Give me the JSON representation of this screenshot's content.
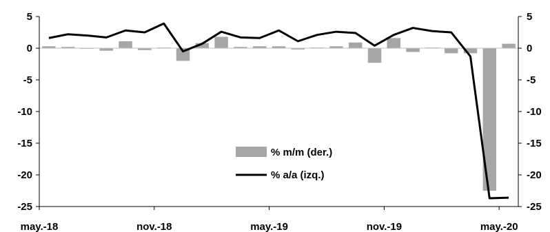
{
  "chart_data": {
    "type": "bar+line",
    "title": "",
    "xlabel": "",
    "ylabel": "",
    "dual_axis": true,
    "x_labels_shown": [
      "may.-18",
      "nov.-18",
      "may.-19",
      "nov.-19",
      "may.-20"
    ],
    "x": [
      "may.-18",
      "jun.-18",
      "jul.-18",
      "ago.-18",
      "sep.-18",
      "oct.-18",
      "nov.-18",
      "dic.-18",
      "ene.-19",
      "feb.-19",
      "mar.-19",
      "abr.-19",
      "may.-19",
      "jun.-19",
      "jul.-19",
      "ago.-19",
      "sep.-19",
      "oct.-19",
      "nov.-19",
      "dic.-19",
      "ene.-20",
      "feb.-20",
      "mar.-20",
      "abr.-20",
      "may.-20"
    ],
    "left_axis": {
      "ylim": [
        -25,
        5
      ],
      "ticks": [
        5,
        0,
        -5,
        -10,
        -15,
        -20,
        -25
      ]
    },
    "right_axis": {
      "ylim": [
        -25,
        5
      ],
      "ticks": [
        5,
        0,
        -5,
        -10,
        -15,
        -20,
        -25
      ]
    },
    "series": [
      {
        "name": "% m/m (der.)",
        "kind": "bar",
        "axis": "right",
        "color": "#a6a6a6",
        "values": [
          0.3,
          0.2,
          -0.1,
          -0.4,
          1.1,
          -0.3,
          0.1,
          -2.0,
          0.8,
          1.8,
          0.2,
          0.3,
          0.3,
          -0.2,
          0.1,
          0.3,
          0.9,
          -2.3,
          1.6,
          -0.6,
          0.1,
          -0.8,
          -0.8,
          -22.5,
          0.7
        ]
      },
      {
        "name": "% a/a (izq.)",
        "kind": "line",
        "axis": "left",
        "color": "#000000",
        "values": [
          1.6,
          2.2,
          2.0,
          1.7,
          2.8,
          2.5,
          3.9,
          -0.5,
          0.7,
          2.6,
          1.7,
          1.6,
          2.8,
          1.1,
          2.1,
          2.6,
          2.4,
          0.4,
          2.1,
          3.2,
          2.7,
          2.5,
          -1.3,
          -23.7,
          -23.6
        ]
      }
    ],
    "legend": {
      "position": "center-right",
      "entries": [
        "% m/m (der.)",
        "% a/a (izq.)"
      ]
    },
    "grid": false
  }
}
